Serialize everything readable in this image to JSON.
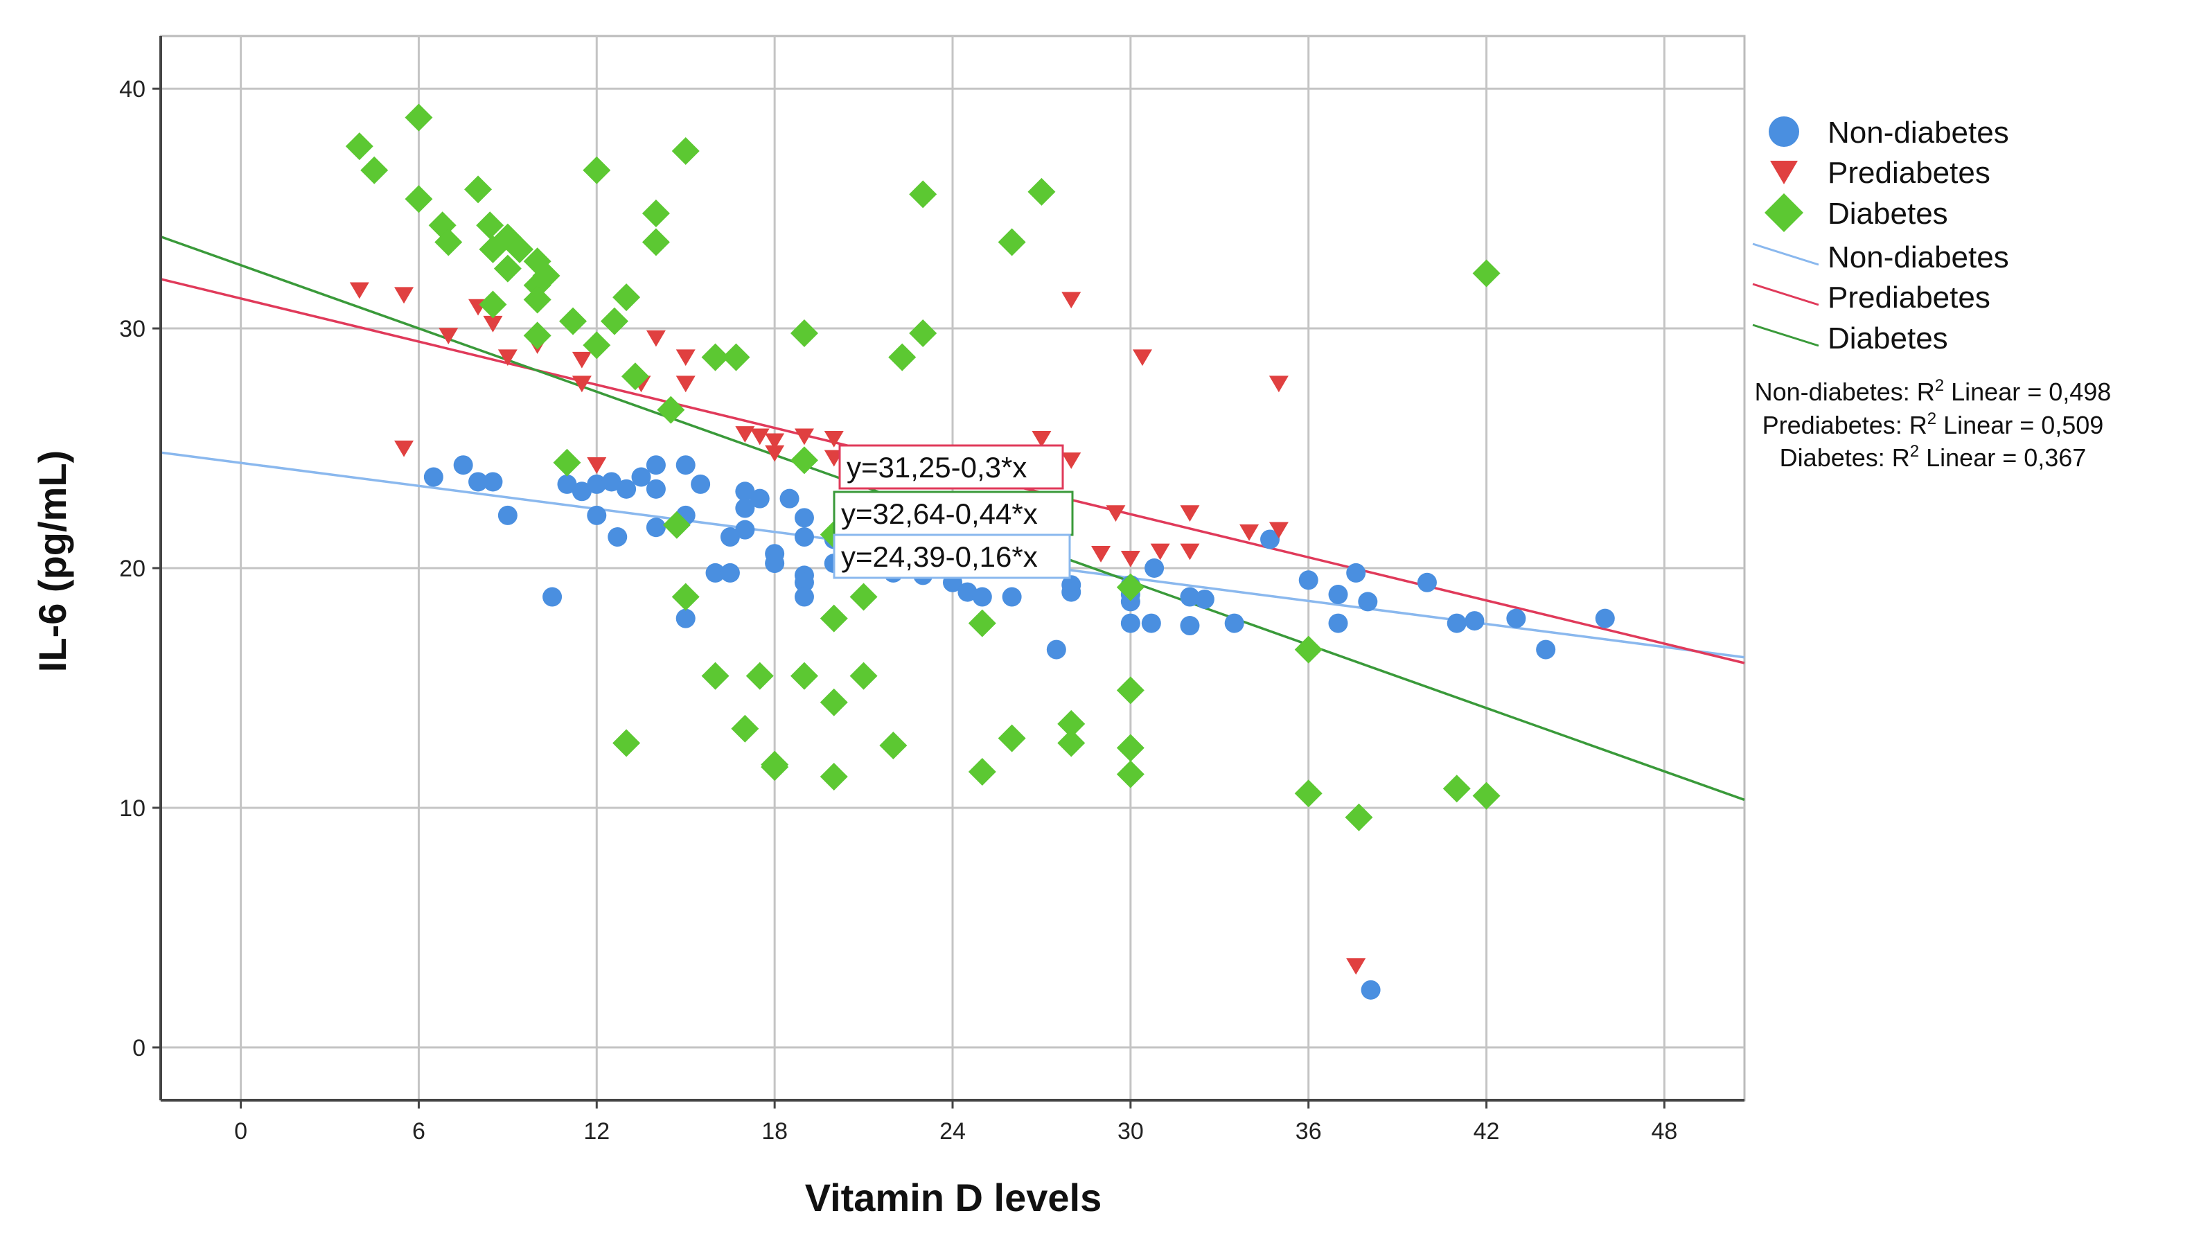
{
  "chart_data": {
    "type": "scatter",
    "xlabel": "Vitamin D levels",
    "ylabel": "IL-6 (pg/mL)",
    "xlim": [
      -2.7,
      50.7
    ],
    "ylim": [
      -2.2,
      42.2
    ],
    "xticks": [
      0,
      6,
      12,
      18,
      24,
      30,
      36,
      42,
      48
    ],
    "yticks": [
      0,
      10,
      20,
      30,
      40
    ],
    "grid": true,
    "legend_position": "right",
    "series": [
      {
        "name": "Non-diabetes",
        "marker": "circle",
        "color": "#4a8fe0",
        "points": [
          [
            6.5,
            23.8
          ],
          [
            7.5,
            24.3
          ],
          [
            8,
            23.6
          ],
          [
            8.5,
            23.6
          ],
          [
            9,
            22.2
          ],
          [
            10.5,
            18.8
          ],
          [
            11,
            23.5
          ],
          [
            11.5,
            23.2
          ],
          [
            12,
            23.5
          ],
          [
            12,
            22.2
          ],
          [
            12.5,
            23.6
          ],
          [
            12.7,
            21.3
          ],
          [
            13,
            23.3
          ],
          [
            13.5,
            23.8
          ],
          [
            14,
            24.3
          ],
          [
            14,
            23.3
          ],
          [
            14,
            21.7
          ],
          [
            15,
            24.3
          ],
          [
            15,
            22.2
          ],
          [
            15,
            17.9
          ],
          [
            15.5,
            23.5
          ],
          [
            16,
            19.8
          ],
          [
            16.5,
            21.3
          ],
          [
            16.5,
            19.8
          ],
          [
            17,
            23.2
          ],
          [
            17,
            22.5
          ],
          [
            17,
            21.6
          ],
          [
            17.5,
            22.9
          ],
          [
            18,
            20.6
          ],
          [
            18,
            20.2
          ],
          [
            18.5,
            22.9
          ],
          [
            19,
            22.1
          ],
          [
            19,
            21.3
          ],
          [
            19,
            19.7
          ],
          [
            19,
            19.4
          ],
          [
            19,
            18.8
          ],
          [
            20,
            21.2
          ],
          [
            20,
            20.2
          ],
          [
            21,
            20
          ],
          [
            22,
            19.8
          ],
          [
            22.5,
            20.1
          ],
          [
            23,
            19.7
          ],
          [
            24,
            19.4
          ],
          [
            24.5,
            19
          ],
          [
            25,
            18.8
          ],
          [
            26,
            18.8
          ],
          [
            27.5,
            16.6
          ],
          [
            28,
            19.3
          ],
          [
            28,
            19
          ],
          [
            30,
            19.3
          ],
          [
            30,
            18.9
          ],
          [
            30,
            18.6
          ],
          [
            30,
            17.7
          ],
          [
            30.7,
            17.7
          ],
          [
            30.8,
            20
          ],
          [
            32,
            18.8
          ],
          [
            32,
            17.6
          ],
          [
            32.5,
            18.7
          ],
          [
            33.5,
            17.7
          ],
          [
            34.7,
            21.2
          ],
          [
            36,
            19.5
          ],
          [
            37,
            18.9
          ],
          [
            37,
            17.7
          ],
          [
            37.6,
            19.8
          ],
          [
            38,
            18.6
          ],
          [
            38.1,
            2.4
          ],
          [
            40,
            19.4
          ],
          [
            41,
            17.7
          ],
          [
            41.6,
            17.8
          ],
          [
            43,
            17.9
          ],
          [
            44,
            16.6
          ],
          [
            46,
            17.9
          ]
        ]
      },
      {
        "name": "Prediabetes",
        "marker": "triangle-down",
        "color": "#e04040",
        "points": [
          [
            4,
            31.6
          ],
          [
            5.5,
            31.4
          ],
          [
            5.5,
            25
          ],
          [
            7,
            29.7
          ],
          [
            8,
            30.9
          ],
          [
            8.5,
            30.2
          ],
          [
            9,
            28.8
          ],
          [
            10,
            29.3
          ],
          [
            11.5,
            28.7
          ],
          [
            11.5,
            27.7
          ],
          [
            12,
            24.3
          ],
          [
            13.5,
            27.7
          ],
          [
            14,
            29.6
          ],
          [
            15,
            28.8
          ],
          [
            15,
            27.7
          ],
          [
            17,
            25.6
          ],
          [
            17.5,
            25.5
          ],
          [
            18,
            25.3
          ],
          [
            18,
            24.8
          ],
          [
            19,
            25.5
          ],
          [
            20,
            25.4
          ],
          [
            20,
            24.6
          ],
          [
            21,
            22.6
          ],
          [
            22,
            21.2
          ],
          [
            23,
            21.2
          ],
          [
            25,
            22.6
          ],
          [
            27,
            25.4
          ],
          [
            28,
            31.2
          ],
          [
            28,
            24.5
          ],
          [
            29,
            20.6
          ],
          [
            29.5,
            22.3
          ],
          [
            30,
            20.4
          ],
          [
            30.4,
            28.8
          ],
          [
            31,
            20.7
          ],
          [
            32,
            22.3
          ],
          [
            32,
            20.7
          ],
          [
            34,
            21.5
          ],
          [
            35,
            27.7
          ],
          [
            35,
            21.6
          ],
          [
            37.6,
            3.4
          ]
        ]
      },
      {
        "name": "Diabetes",
        "marker": "diamond",
        "color": "#5cc832",
        "points": [
          [
            4,
            37.6
          ],
          [
            4.5,
            36.6
          ],
          [
            6,
            38.8
          ],
          [
            6,
            35.4
          ],
          [
            6.8,
            34.3
          ],
          [
            7,
            33.6
          ],
          [
            8,
            35.8
          ],
          [
            8.4,
            34.3
          ],
          [
            8.5,
            33.3
          ],
          [
            8.5,
            31
          ],
          [
            9,
            33.8
          ],
          [
            9,
            32.5
          ],
          [
            9.4,
            33.3
          ],
          [
            10,
            32.8
          ],
          [
            10,
            31.8
          ],
          [
            10,
            31.2
          ],
          [
            10,
            29.7
          ],
          [
            10.3,
            32.2
          ],
          [
            11,
            24.4
          ],
          [
            11.2,
            30.3
          ],
          [
            12,
            36.6
          ],
          [
            12,
            29.3
          ],
          [
            12.6,
            30.3
          ],
          [
            13,
            31.3
          ],
          [
            13,
            12.7
          ],
          [
            13.3,
            28
          ],
          [
            14,
            33.6
          ],
          [
            14,
            34.8
          ],
          [
            14.5,
            26.6
          ],
          [
            14.7,
            21.8
          ],
          [
            15,
            37.4
          ],
          [
            15,
            18.8
          ],
          [
            16,
            15.5
          ],
          [
            16,
            28.8
          ],
          [
            16.7,
            28.8
          ],
          [
            17,
            13.3
          ],
          [
            17.5,
            15.5
          ],
          [
            18,
            11.8
          ],
          [
            18,
            11.7
          ],
          [
            19,
            29.8
          ],
          [
            19,
            24.5
          ],
          [
            19,
            15.5
          ],
          [
            20,
            21.4
          ],
          [
            20,
            17.9
          ],
          [
            20,
            14.4
          ],
          [
            20,
            11.3
          ],
          [
            21,
            18.8
          ],
          [
            21,
            15.5
          ],
          [
            22,
            12.6
          ],
          [
            22.3,
            28.8
          ],
          [
            23,
            29.8
          ],
          [
            23,
            35.6
          ],
          [
            25,
            17.7
          ],
          [
            25,
            11.5
          ],
          [
            26,
            33.6
          ],
          [
            26,
            12.9
          ],
          [
            27,
            35.7
          ],
          [
            28,
            13.5
          ],
          [
            28,
            12.7
          ],
          [
            30,
            14.9
          ],
          [
            30,
            12.5
          ],
          [
            30,
            11.4
          ],
          [
            30,
            19.2
          ],
          [
            36,
            16.6
          ],
          [
            36,
            10.6
          ],
          [
            37.7,
            9.6
          ],
          [
            41,
            10.8
          ],
          [
            42,
            32.3
          ],
          [
            42,
            10.5
          ]
        ]
      }
    ],
    "fit_lines": [
      {
        "name": "Non-diabetes",
        "color": "#8ab8ee",
        "intercept": 24.39,
        "slope": -0.16,
        "equation": "y=24,39-0,16*x",
        "r2_label": "Non-diabetes: R",
        "r2_suffix": " Linear = 0,498"
      },
      {
        "name": "Prediabetes",
        "color": "#e03a5a",
        "intercept": 31.25,
        "slope": -0.3,
        "equation": "y=31,25-0,3*x",
        "r2_label": "Prediabetes: R",
        "r2_suffix": " Linear = 0,509"
      },
      {
        "name": "Diabetes",
        "color": "#3a9a3a",
        "intercept": 32.64,
        "slope": -0.44,
        "equation": "y=32,64-0,44*x",
        "r2_label": "Diabetes: R",
        "r2_suffix": " Linear = 0,367"
      }
    ],
    "r2_superscript": "2"
  }
}
